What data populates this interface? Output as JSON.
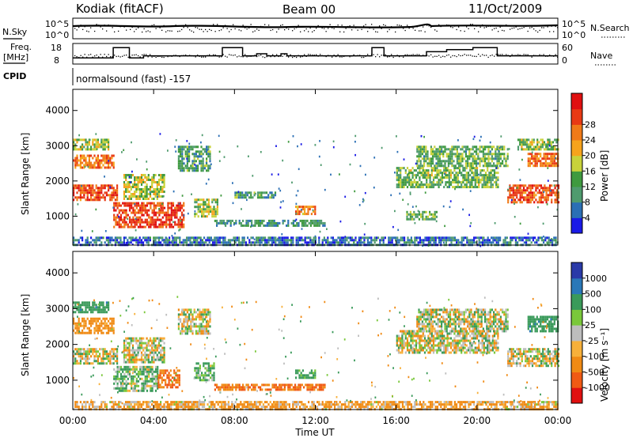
{
  "header": {
    "station": "Kodiak (fitACF)",
    "beam": "Beam 00",
    "date": "11/Oct/2009"
  },
  "top_panels": {
    "nsky_label": "N.Sky",
    "nsky_ticks": [
      "10^5",
      "10^0"
    ],
    "nsearch_label": "N.Search",
    "nsearch_ticks": [
      "10^5",
      "10^0"
    ],
    "freq_label_1": "Freq.",
    "freq_label_2": "[MHz]",
    "freq_ticks": [
      "18",
      "8"
    ],
    "nave_label": "Nave",
    "nave_ticks": [
      "60",
      "0"
    ],
    "cpid_label": "CPID",
    "cpid_text": "normalsound (fast) -157"
  },
  "time_axis": {
    "label": "Time UT",
    "ticks": [
      "00:00",
      "04:00",
      "08:00",
      "12:00",
      "16:00",
      "20:00",
      "00:00"
    ]
  },
  "colors": {
    "power_scale": [
      "#1a1ae6",
      "#2b6fb5",
      "#4f9b6e",
      "#3f9a3f",
      "#c8d23a",
      "#f6a31c",
      "#f07a18",
      "#e83a14",
      "#e01010"
    ],
    "velocity_scale": [
      "#2a3aa8",
      "#2a78b8",
      "#3a9a5a",
      "#7ac83a",
      "#bdbdbd",
      "#f7b03a",
      "#f08a14",
      "#f05a14",
      "#e01010"
    ]
  },
  "chart_data": [
    {
      "type": "heatmap",
      "name": "power",
      "xlabel": "Time UT",
      "ylabel": "Slant Range [km]",
      "xlim_hours": [
        0,
        24
      ],
      "ylim": [
        180,
        4600
      ],
      "yticks": [
        "1000",
        "2000",
        "3000",
        "4000"
      ],
      "colorbar_label": "Power [dB]",
      "colorbar_ticks": [
        "4",
        "8",
        "12",
        "16",
        "20",
        "24",
        "28"
      ],
      "colorbar_range": [
        0,
        32
      ],
      "regions": [
        {
          "t0": 0.0,
          "t1": 2.2,
          "r0": 1450,
          "r1": 1900,
          "value": 26
        },
        {
          "t0": 0.0,
          "t1": 2.0,
          "r0": 2350,
          "r1": 2750,
          "value": 23
        },
        {
          "t0": 0.0,
          "t1": 1.8,
          "r0": 2900,
          "r1": 3200,
          "value": 14
        },
        {
          "t0": 2.0,
          "t1": 5.5,
          "r0": 700,
          "r1": 1400,
          "value": 27
        },
        {
          "t0": 2.5,
          "t1": 4.5,
          "r0": 1500,
          "r1": 2200,
          "value": 16
        },
        {
          "t0": 5.2,
          "t1": 6.8,
          "r0": 2300,
          "r1": 3000,
          "value": 10
        },
        {
          "t0": 6.0,
          "t1": 7.2,
          "r0": 1000,
          "r1": 1500,
          "value": 14
        },
        {
          "t0": 7.0,
          "t1": 12.5,
          "r0": 750,
          "r1": 900,
          "value": 9
        },
        {
          "t0": 8.0,
          "t1": 10.0,
          "r0": 1500,
          "r1": 1700,
          "value": 10
        },
        {
          "t0": 11.0,
          "t1": 12.0,
          "r0": 1050,
          "r1": 1300,
          "value": 22
        },
        {
          "t0": 16.5,
          "t1": 18.0,
          "r0": 900,
          "r1": 1150,
          "value": 12
        },
        {
          "t0": 16.0,
          "t1": 21.0,
          "r0": 1800,
          "r1": 2400,
          "value": 13
        },
        {
          "t0": 17.0,
          "t1": 21.5,
          "r0": 2400,
          "r1": 3000,
          "value": 12
        },
        {
          "t0": 21.5,
          "t1": 24.0,
          "r0": 1400,
          "r1": 1900,
          "value": 26
        },
        {
          "t0": 22.5,
          "t1": 24.0,
          "r0": 2400,
          "r1": 2800,
          "value": 23
        },
        {
          "t0": 22.0,
          "t1": 24.0,
          "r0": 2900,
          "r1": 3200,
          "value": 14
        },
        {
          "t0": 0.0,
          "t1": 24.0,
          "r0": 200,
          "r1": 420,
          "value": 6
        }
      ]
    },
    {
      "type": "heatmap",
      "name": "velocity",
      "xlabel": "Time UT",
      "ylabel": "Slant Range [km]",
      "xlim_hours": [
        0,
        24
      ],
      "ylim": [
        180,
        4600
      ],
      "yticks": [
        "1000",
        "2000",
        "3000",
        "4000"
      ],
      "colorbar_label": "Velocity [m s⁻¹]",
      "colorbar_ticks": [
        "1000",
        "500",
        "100",
        "25",
        "-25",
        "-100",
        "-500",
        "-1000"
      ],
      "regions": [
        {
          "t0": 0.0,
          "t1": 2.2,
          "r0": 1450,
          "r1": 1900,
          "value": 0
        },
        {
          "t0": 0.0,
          "t1": 2.0,
          "r0": 2350,
          "r1": 2750,
          "value": -150
        },
        {
          "t0": 0.0,
          "t1": 1.8,
          "r0": 2900,
          "r1": 3200,
          "value": 200
        },
        {
          "t0": 2.0,
          "t1": 4.2,
          "r0": 700,
          "r1": 1400,
          "value": 60
        },
        {
          "t0": 4.2,
          "t1": 5.3,
          "r0": 800,
          "r1": 1300,
          "value": -300
        },
        {
          "t0": 2.5,
          "t1": 4.5,
          "r0": 1500,
          "r1": 2200,
          "value": 0
        },
        {
          "t0": 5.2,
          "t1": 6.8,
          "r0": 2300,
          "r1": 3000,
          "value": 0
        },
        {
          "t0": 6.0,
          "t1": 7.0,
          "r0": 1000,
          "r1": 1500,
          "value": 80
        },
        {
          "t0": 7.0,
          "t1": 12.5,
          "r0": 750,
          "r1": 900,
          "value": -300
        },
        {
          "t0": 11.0,
          "t1": 12.0,
          "r0": 1050,
          "r1": 1300,
          "value": 150
        },
        {
          "t0": 16.0,
          "t1": 21.0,
          "r0": 1800,
          "r1": 2400,
          "value": 0
        },
        {
          "t0": 17.0,
          "t1": 21.5,
          "r0": 2400,
          "r1": 3000,
          "value": 0
        },
        {
          "t0": 21.5,
          "t1": 24.0,
          "r0": 1400,
          "r1": 1900,
          "value": 0
        },
        {
          "t0": 22.5,
          "t1": 24.0,
          "r0": 2400,
          "r1": 2800,
          "value": 200
        },
        {
          "t0": 0.0,
          "t1": 24.0,
          "r0": 200,
          "r1": 420,
          "value": -80
        }
      ]
    },
    {
      "type": "line",
      "name": "frequency",
      "ylim": [
        8,
        18
      ],
      "x_hours": [
        0,
        2.0,
        2.0,
        2.8,
        2.8,
        3.5,
        3.5,
        7.4,
        7.4,
        8.4,
        8.4,
        9.1,
        9.1,
        9.6,
        9.6,
        10.3,
        10.3,
        10.6,
        10.6,
        14.8,
        14.8,
        15.4,
        15.4,
        17.5,
        17.5,
        18.5,
        18.5,
        19.8,
        19.8,
        21.0,
        21.0,
        24.0
      ],
      "values": [
        11,
        11,
        16,
        16,
        11,
        11,
        12,
        12,
        16,
        16,
        12,
        12,
        13,
        13,
        12,
        12,
        13,
        13,
        12,
        12,
        16,
        16,
        12,
        12,
        14,
        14,
        15,
        15,
        16,
        16,
        12,
        12
      ]
    }
  ]
}
